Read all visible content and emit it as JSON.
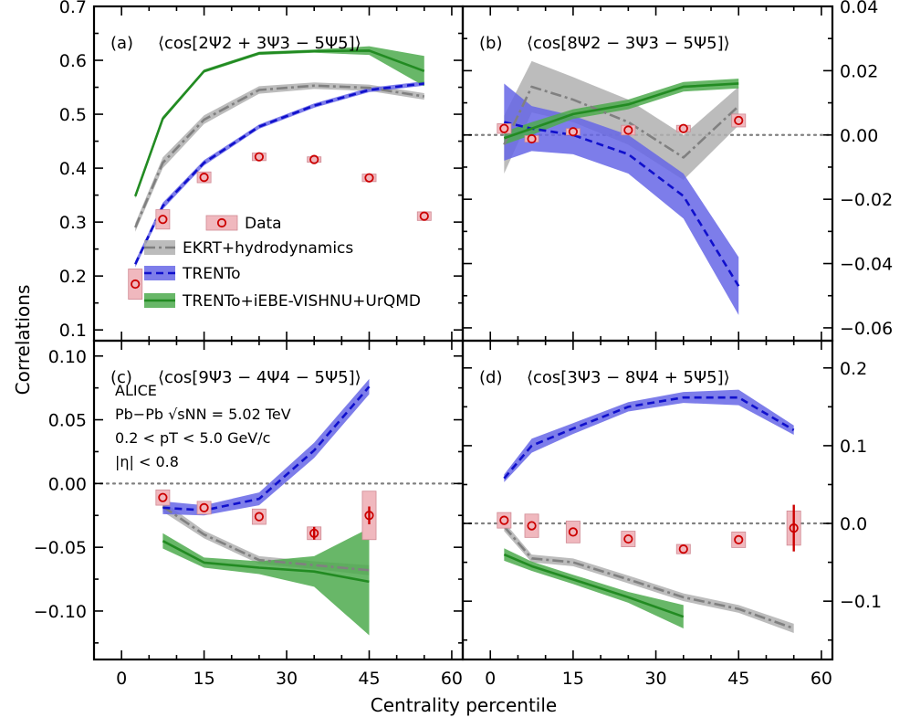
{
  "chart_data": {
    "type": "line",
    "xlabel": "Centrality percentile",
    "ylabel": "Correlations",
    "x_ticks": [
      "0",
      "15",
      "30",
      "45",
      "60"
    ],
    "legend": [
      {
        "key": "data",
        "label": "Data"
      },
      {
        "key": "ekrt",
        "label": "EKRT+hydrodynamics"
      },
      {
        "key": "trento",
        "label": "TRENTo"
      },
      {
        "key": "vishnu",
        "label": "TRENTo+iEBE-VISHNU+UrQMD"
      }
    ],
    "series_styles": {
      "ekrt": {
        "color": "#808080",
        "band": "#b0b0b0",
        "dash": "12 4 3 4"
      },
      "trento": {
        "color": "#1010cc",
        "band": "#6666e6",
        "dash": "8 5"
      },
      "vishnu": {
        "color": "#228b22",
        "band": "#4daa4d",
        "dash": ""
      },
      "data": {
        "color": "#cc0000",
        "box": "#f0b8be"
      }
    },
    "info_text": [
      "ALICE",
      "Pb−Pb √sNN = 5.02 TeV",
      "0.2 < pT < 5.0 GeV/c",
      "|η| < 0.8"
    ],
    "panels": [
      {
        "id": "a",
        "label": "(a)",
        "title": "⟨cos[2Ψ2 + 3Ψ3 − 5Ψ5]⟩",
        "xlim": [
          -5,
          62
        ],
        "ylim": [
          0.08,
          0.7
        ],
        "yticks": [
          0.1,
          0.2,
          0.3,
          0.4,
          0.5,
          0.6,
          0.7
        ],
        "ytick_labels": [
          "0.1",
          "0.2",
          "0.3",
          "0.4",
          "0.5",
          "0.6",
          "0.7"
        ],
        "ytick_side": "left",
        "zero_line": false,
        "ekrt": {
          "x": [
            2.5,
            7.5,
            15,
            25,
            35,
            45,
            55
          ],
          "y": [
            0.29,
            0.41,
            0.49,
            0.545,
            0.553,
            0.549,
            0.533
          ],
          "band": [
            0.008,
            0.01,
            0.008,
            0.007,
            0.006,
            0.006,
            0.006
          ]
        },
        "trento": {
          "x": [
            2.5,
            7.5,
            15,
            25,
            35,
            45,
            55
          ],
          "y": [
            0.222,
            0.33,
            0.41,
            0.477,
            0.516,
            0.545,
            0.557
          ],
          "band": [
            0.006,
            0.006,
            0.005,
            0.004,
            0.004,
            0.004,
            0.004
          ]
        },
        "vishnu": {
          "x": [
            2.5,
            7.5,
            15,
            25,
            35,
            45,
            55
          ],
          "y": [
            0.348,
            0.492,
            0.58,
            0.613,
            0.617,
            0.618,
            0.58
          ],
          "band": [
            0.004,
            0.004,
            0.003,
            0.003,
            0.003,
            0.008,
            0.028
          ]
        },
        "data": {
          "x": [
            2.5,
            7.5,
            15,
            25,
            35,
            45,
            55
          ],
          "y": [
            0.185,
            0.305,
            0.383,
            0.421,
            0.416,
            0.382,
            0.311
          ],
          "box_w": [
            2.5,
            2.5,
            2.5,
            2.5,
            2.5,
            2.5,
            2.5
          ],
          "box_h": [
            0.028,
            0.018,
            0.01,
            0.007,
            0.005,
            0.007,
            0.008
          ]
        }
      },
      {
        "id": "b",
        "label": "(b)",
        "title": "⟨cos[8Ψ2 − 3Ψ3 − 5Ψ5]⟩",
        "xlim": [
          -5,
          62
        ],
        "ylim": [
          -0.064,
          0.04
        ],
        "yticks": [
          -0.06,
          -0.04,
          -0.02,
          0.0,
          0.02,
          0.04
        ],
        "ytick_labels": [
          "−0.06",
          "−0.04",
          "−0.02",
          "0.00",
          "0.02",
          "0.04"
        ],
        "ytick_side": "right",
        "zero_line": true,
        "ekrt": {
          "x": [
            2.5,
            7.5,
            15,
            25,
            35,
            45
          ],
          "y": [
            -0.003,
            0.015,
            0.011,
            0.004,
            -0.007,
            0.009
          ],
          "band": [
            0.009,
            0.008,
            0.007,
            0.007,
            0.007,
            0.006
          ]
        },
        "trento": {
          "x": [
            2.5,
            7.5,
            15,
            25,
            35,
            45
          ],
          "y": [
            0.004,
            0.002,
            0.0,
            -0.006,
            -0.019,
            -0.047
          ],
          "band": [
            0.012,
            0.007,
            0.006,
            0.006,
            0.007,
            0.009
          ]
        },
        "vishnu": {
          "x": [
            2.5,
            7.5,
            15,
            25,
            35,
            45
          ],
          "y": [
            -0.001,
            0.002,
            0.0065,
            0.0095,
            0.015,
            0.016
          ],
          "band": [
            0.002,
            0.002,
            0.0015,
            0.0015,
            0.0015,
            0.0015
          ]
        },
        "data": {
          "x": [
            2.5,
            7.5,
            15,
            25,
            35,
            45
          ],
          "y": [
            0.002,
            -0.0012,
            0.001,
            0.0015,
            0.002,
            0.0045
          ],
          "box_w": [
            2.5,
            2.5,
            2.5,
            2.5,
            2.5,
            2.5
          ],
          "box_h": [
            0.0015,
            0.001,
            0.001,
            0.0015,
            0.001,
            0.002
          ]
        }
      },
      {
        "id": "c",
        "label": "(c)",
        "title": "⟨cos[9Ψ3 − 4Ψ4 − 5Ψ5]⟩",
        "xlim": [
          -5,
          62
        ],
        "ylim": [
          -0.138,
          0.112
        ],
        "yticks": [
          -0.1,
          -0.05,
          0.0,
          0.05,
          0.1
        ],
        "ytick_labels": [
          "−0.10",
          "−0.05",
          "0.00",
          "0.05",
          "0.10"
        ],
        "ytick_side": "left",
        "zero_line": true,
        "ekrt": {
          "x": [
            7.5,
            15,
            25,
            35,
            45
          ],
          "y": [
            -0.018,
            -0.04,
            -0.06,
            -0.064,
            -0.068
          ],
          "band": [
            0.004,
            0.003,
            0.003,
            0.003,
            0.004
          ]
        },
        "trento": {
          "x": [
            7.5,
            15,
            25,
            35,
            45
          ],
          "y": [
            -0.019,
            -0.021,
            -0.012,
            0.026,
            0.076
          ],
          "band": [
            0.005,
            0.004,
            0.005,
            0.006,
            0.006
          ]
        },
        "vishnu": {
          "x": [
            7.5,
            15,
            25,
            35,
            45
          ],
          "y": [
            -0.045,
            -0.062,
            -0.066,
            -0.069,
            -0.077
          ],
          "band": [
            0.006,
            0.004,
            0.005,
            0.012,
            0.042
          ]
        },
        "data": {
          "x": [
            7.5,
            15,
            25,
            35,
            45
          ],
          "y": [
            -0.011,
            -0.019,
            -0.026,
            -0.039,
            -0.025
          ],
          "box_w": [
            2.5,
            2.5,
            2.5,
            2.5,
            2.5
          ],
          "box_h": [
            0.006,
            0.005,
            0.006,
            0.005,
            0.019
          ],
          "err": [
            0,
            0,
            0,
            0.005,
            0.007
          ]
        }
      },
      {
        "id": "d",
        "label": "(d)",
        "title": "⟨cos[3Ψ3 − 8Ψ4 + 5Ψ5]⟩",
        "xlim": [
          -5,
          62
        ],
        "ylim": [
          -0.175,
          0.235
        ],
        "yticks": [
          -0.1,
          0.0,
          0.1,
          0.2
        ],
        "ytick_labels": [
          "−0.1",
          "0.0",
          "0.1",
          "0.2"
        ],
        "ytick_side": "right",
        "zero_line": true,
        "ekrt": {
          "x": [
            2.5,
            7.5,
            15,
            25,
            35,
            45,
            55
          ],
          "y": [
            -0.004,
            -0.045,
            -0.05,
            -0.072,
            -0.095,
            -0.11,
            -0.135
          ],
          "band": [
            0.006,
            0.005,
            0.005,
            0.005,
            0.005,
            0.005,
            0.006
          ]
        },
        "trento": {
          "x": [
            2.5,
            7.5,
            15,
            25,
            35,
            45,
            55
          ],
          "y": [
            0.058,
            0.1,
            0.122,
            0.15,
            0.162,
            0.162,
            0.12
          ],
          "band": [
            0.005,
            0.009,
            0.007,
            0.006,
            0.007,
            0.01,
            0.006
          ]
        },
        "vishnu": {
          "x": [
            2.5,
            7.5,
            15,
            25,
            35
          ],
          "y": [
            -0.04,
            -0.055,
            -0.072,
            -0.095,
            -0.12
          ],
          "band": [
            0.008,
            0.006,
            0.006,
            0.007,
            0.015
          ]
        },
        "data": {
          "x": [
            2.5,
            7.5,
            15,
            25,
            35,
            45,
            55
          ],
          "y": [
            0.004,
            -0.003,
            -0.011,
            -0.02,
            -0.033,
            -0.021,
            -0.006
          ],
          "box_w": [
            2.5,
            2.5,
            2.5,
            2.5,
            2.5,
            2.5,
            2.5
          ],
          "box_h": [
            0.01,
            0.015,
            0.014,
            0.01,
            0.006,
            0.01,
            0.022
          ],
          "err": [
            0,
            0,
            0,
            0,
            0,
            0,
            0.03
          ]
        }
      }
    ]
  }
}
